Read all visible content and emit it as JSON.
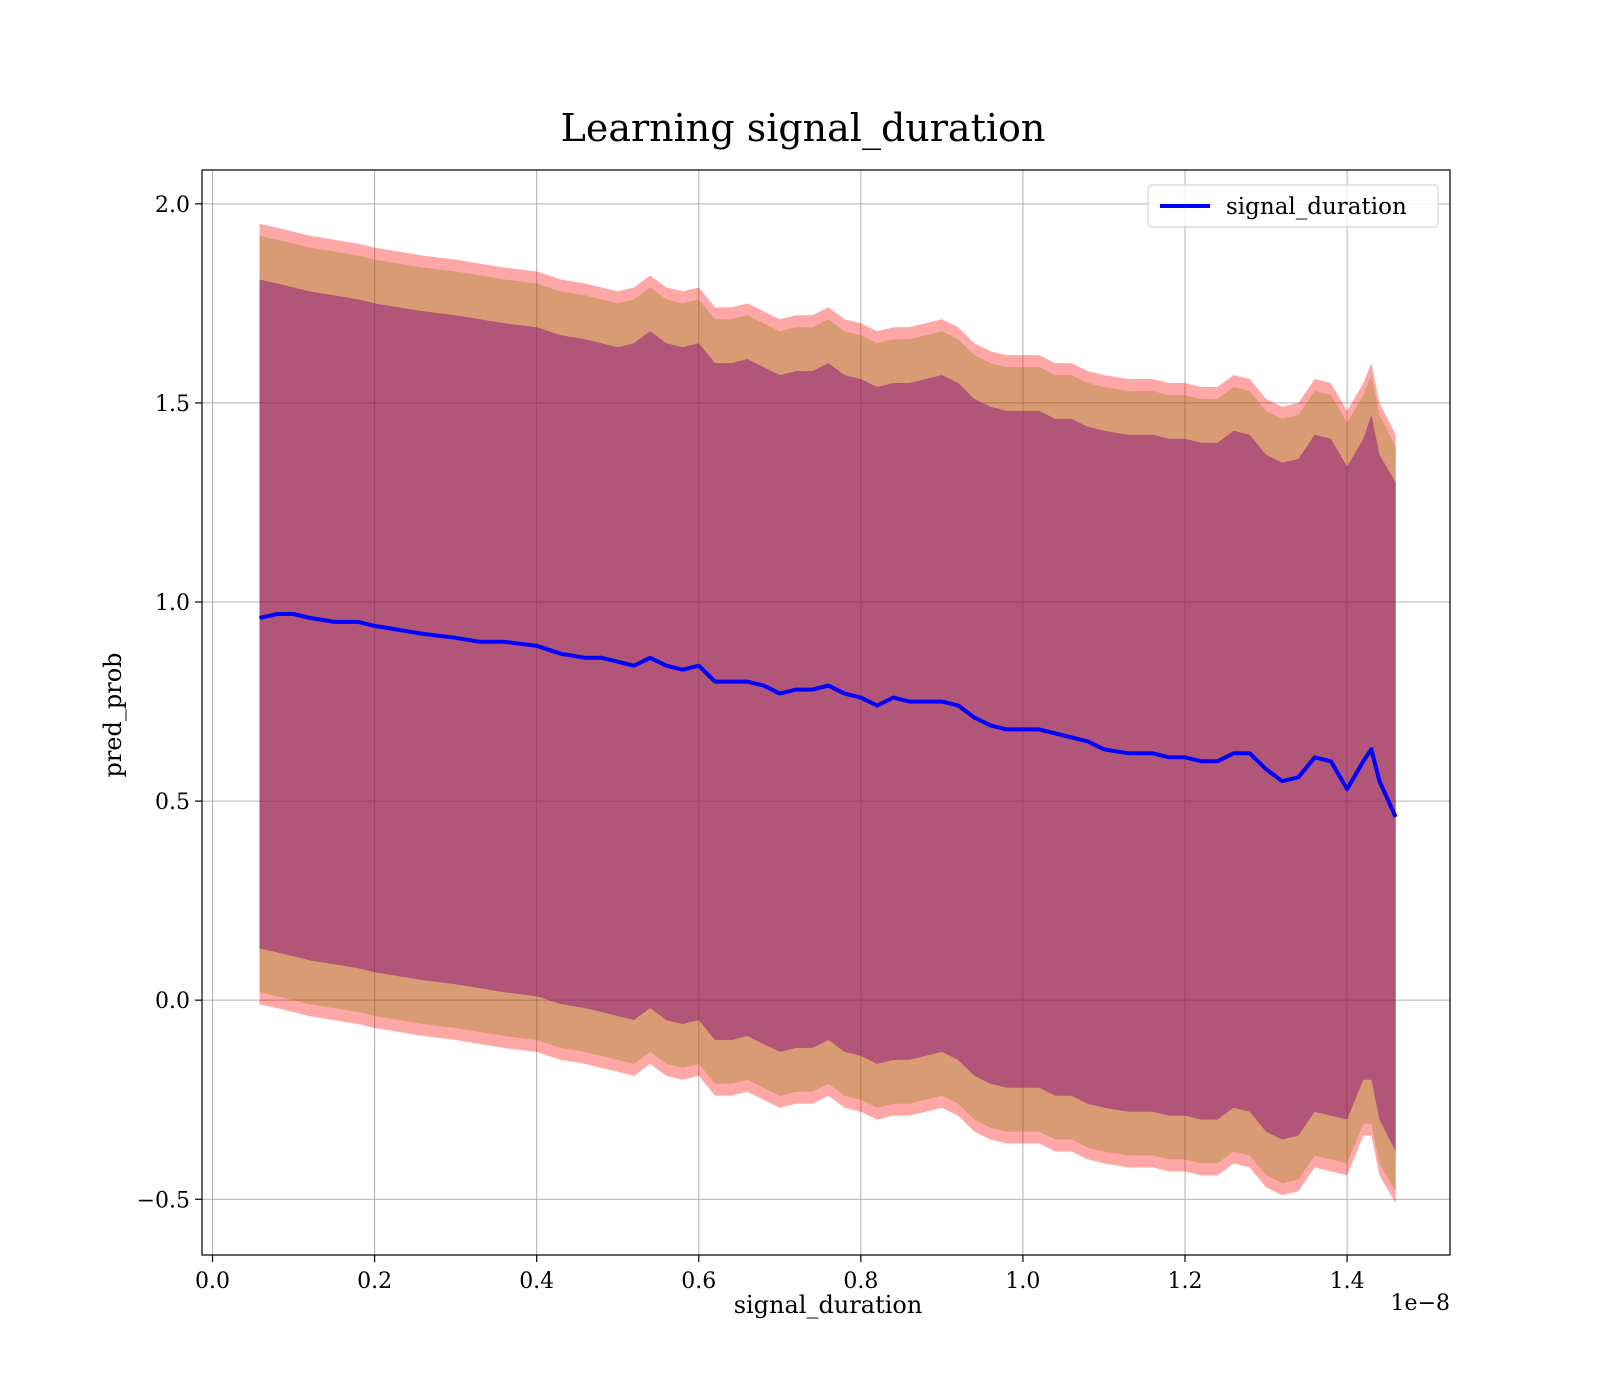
{
  "chart_data": {
    "type": "line",
    "title": "Learning signal_duration",
    "xlabel": "signal_duration",
    "ylabel": "pred_prob",
    "x_scale_label": "1e−8",
    "x_ticks": [
      0.0,
      0.2,
      0.4,
      0.6,
      0.8,
      1.0,
      1.2,
      1.4
    ],
    "x_tick_labels": [
      "0.0",
      "0.2",
      "0.4",
      "0.6",
      "0.8",
      "1.0",
      "1.2",
      "1.4"
    ],
    "y_ticks": [
      -0.5,
      0.0,
      0.5,
      1.0,
      1.5,
      2.0
    ],
    "y_tick_labels": [
      "−0.5",
      "0.0",
      "0.5",
      "1.0",
      "1.5",
      "2.0"
    ],
    "xlim": [
      -0.013,
      1.527
    ],
    "ylim": [
      -0.64,
      2.085
    ],
    "grid": true,
    "legend": {
      "position": "top-right",
      "entries": [
        "signal_duration"
      ]
    },
    "x": [
      0.058,
      0.08,
      0.1,
      0.12,
      0.15,
      0.18,
      0.2,
      0.23,
      0.26,
      0.3,
      0.33,
      0.36,
      0.4,
      0.43,
      0.46,
      0.48,
      0.5,
      0.52,
      0.54,
      0.56,
      0.58,
      0.6,
      0.62,
      0.64,
      0.66,
      0.68,
      0.7,
      0.72,
      0.74,
      0.76,
      0.78,
      0.8,
      0.82,
      0.84,
      0.86,
      0.88,
      0.9,
      0.92,
      0.94,
      0.96,
      0.98,
      1.0,
      1.02,
      1.04,
      1.06,
      1.08,
      1.1,
      1.13,
      1.16,
      1.18,
      1.2,
      1.22,
      1.24,
      1.26,
      1.28,
      1.3,
      1.32,
      1.34,
      1.36,
      1.38,
      1.4,
      1.42,
      1.43,
      1.44,
      1.46
    ],
    "series": [
      {
        "name": "signal_duration",
        "color": "#0000ff",
        "values": [
          0.96,
          0.97,
          0.97,
          0.96,
          0.95,
          0.95,
          0.94,
          0.93,
          0.92,
          0.91,
          0.9,
          0.9,
          0.89,
          0.87,
          0.86,
          0.86,
          0.85,
          0.84,
          0.86,
          0.84,
          0.83,
          0.84,
          0.8,
          0.8,
          0.8,
          0.79,
          0.77,
          0.78,
          0.78,
          0.79,
          0.77,
          0.76,
          0.74,
          0.76,
          0.75,
          0.75,
          0.75,
          0.74,
          0.71,
          0.69,
          0.68,
          0.68,
          0.68,
          0.67,
          0.66,
          0.65,
          0.63,
          0.62,
          0.62,
          0.61,
          0.61,
          0.6,
          0.6,
          0.62,
          0.62,
          0.58,
          0.55,
          0.56,
          0.61,
          0.6,
          0.53,
          0.6,
          0.63,
          0.55,
          0.46
        ]
      }
    ],
    "bands": [
      {
        "color": "#ff0000",
        "opacity": 0.35,
        "upper": [
          1.95,
          1.94,
          1.93,
          1.92,
          1.91,
          1.9,
          1.89,
          1.88,
          1.87,
          1.86,
          1.85,
          1.84,
          1.83,
          1.81,
          1.8,
          1.79,
          1.78,
          1.79,
          1.82,
          1.79,
          1.78,
          1.79,
          1.74,
          1.74,
          1.75,
          1.73,
          1.71,
          1.72,
          1.72,
          1.74,
          1.71,
          1.7,
          1.68,
          1.69,
          1.69,
          1.7,
          1.71,
          1.69,
          1.65,
          1.63,
          1.62,
          1.62,
          1.62,
          1.6,
          1.6,
          1.58,
          1.57,
          1.56,
          1.56,
          1.55,
          1.55,
          1.54,
          1.54,
          1.57,
          1.56,
          1.51,
          1.49,
          1.5,
          1.56,
          1.55,
          1.48,
          1.55,
          1.6,
          1.5,
          1.42
        ],
        "lower": [
          -0.01,
          -0.02,
          -0.03,
          -0.04,
          -0.05,
          -0.06,
          -0.07,
          -0.08,
          -0.09,
          -0.1,
          -0.11,
          -0.12,
          -0.13,
          -0.15,
          -0.16,
          -0.17,
          -0.18,
          -0.19,
          -0.16,
          -0.19,
          -0.2,
          -0.19,
          -0.24,
          -0.24,
          -0.23,
          -0.25,
          -0.27,
          -0.26,
          -0.26,
          -0.24,
          -0.27,
          -0.28,
          -0.3,
          -0.29,
          -0.29,
          -0.28,
          -0.27,
          -0.29,
          -0.33,
          -0.35,
          -0.36,
          -0.36,
          -0.36,
          -0.38,
          -0.38,
          -0.4,
          -0.41,
          -0.42,
          -0.42,
          -0.43,
          -0.43,
          -0.44,
          -0.44,
          -0.41,
          -0.42,
          -0.47,
          -0.49,
          -0.48,
          -0.42,
          -0.43,
          -0.44,
          -0.34,
          -0.34,
          -0.44,
          -0.51
        ]
      },
      {
        "color": "#808000",
        "opacity": 0.3,
        "upper": [
          1.92,
          1.91,
          1.9,
          1.89,
          1.88,
          1.87,
          1.86,
          1.85,
          1.84,
          1.83,
          1.82,
          1.81,
          1.8,
          1.78,
          1.77,
          1.76,
          1.75,
          1.76,
          1.79,
          1.76,
          1.75,
          1.76,
          1.71,
          1.71,
          1.72,
          1.7,
          1.68,
          1.69,
          1.69,
          1.71,
          1.68,
          1.67,
          1.65,
          1.66,
          1.66,
          1.67,
          1.68,
          1.66,
          1.62,
          1.6,
          1.59,
          1.59,
          1.59,
          1.57,
          1.57,
          1.55,
          1.54,
          1.53,
          1.53,
          1.52,
          1.52,
          1.51,
          1.51,
          1.54,
          1.53,
          1.48,
          1.46,
          1.47,
          1.53,
          1.52,
          1.45,
          1.52,
          1.57,
          1.47,
          1.39
        ],
        "lower": [
          0.02,
          0.01,
          0.0,
          -0.01,
          -0.02,
          -0.03,
          -0.04,
          -0.05,
          -0.06,
          -0.07,
          -0.08,
          -0.09,
          -0.1,
          -0.12,
          -0.13,
          -0.14,
          -0.15,
          -0.16,
          -0.13,
          -0.16,
          -0.17,
          -0.16,
          -0.21,
          -0.21,
          -0.2,
          -0.22,
          -0.24,
          -0.23,
          -0.23,
          -0.21,
          -0.24,
          -0.25,
          -0.27,
          -0.26,
          -0.26,
          -0.25,
          -0.24,
          -0.26,
          -0.3,
          -0.32,
          -0.33,
          -0.33,
          -0.33,
          -0.35,
          -0.35,
          -0.37,
          -0.38,
          -0.39,
          -0.39,
          -0.4,
          -0.4,
          -0.41,
          -0.41,
          -0.38,
          -0.39,
          -0.44,
          -0.46,
          -0.45,
          -0.39,
          -0.4,
          -0.41,
          -0.31,
          -0.31,
          -0.41,
          -0.48
        ]
      },
      {
        "color": "#800080",
        "opacity": 0.45,
        "upper": [
          1.81,
          1.8,
          1.79,
          1.78,
          1.77,
          1.76,
          1.75,
          1.74,
          1.73,
          1.72,
          1.71,
          1.7,
          1.69,
          1.67,
          1.66,
          1.65,
          1.64,
          1.65,
          1.68,
          1.65,
          1.64,
          1.65,
          1.6,
          1.6,
          1.61,
          1.59,
          1.57,
          1.58,
          1.58,
          1.6,
          1.57,
          1.56,
          1.54,
          1.55,
          1.55,
          1.56,
          1.57,
          1.55,
          1.51,
          1.49,
          1.48,
          1.48,
          1.48,
          1.46,
          1.46,
          1.44,
          1.43,
          1.42,
          1.42,
          1.41,
          1.41,
          1.4,
          1.4,
          1.43,
          1.42,
          1.37,
          1.35,
          1.36,
          1.42,
          1.41,
          1.34,
          1.41,
          1.47,
          1.37,
          1.3
        ],
        "lower": [
          0.13,
          0.12,
          0.11,
          0.1,
          0.09,
          0.08,
          0.07,
          0.06,
          0.05,
          0.04,
          0.03,
          0.02,
          0.01,
          -0.01,
          -0.02,
          -0.03,
          -0.04,
          -0.05,
          -0.02,
          -0.05,
          -0.06,
          -0.05,
          -0.1,
          -0.1,
          -0.09,
          -0.11,
          -0.13,
          -0.12,
          -0.12,
          -0.1,
          -0.13,
          -0.14,
          -0.16,
          -0.15,
          -0.15,
          -0.14,
          -0.13,
          -0.15,
          -0.19,
          -0.21,
          -0.22,
          -0.22,
          -0.22,
          -0.24,
          -0.24,
          -0.26,
          -0.27,
          -0.28,
          -0.28,
          -0.29,
          -0.29,
          -0.3,
          -0.3,
          -0.27,
          -0.28,
          -0.33,
          -0.35,
          -0.34,
          -0.28,
          -0.29,
          -0.3,
          -0.2,
          -0.2,
          -0.3,
          -0.38
        ]
      }
    ]
  }
}
